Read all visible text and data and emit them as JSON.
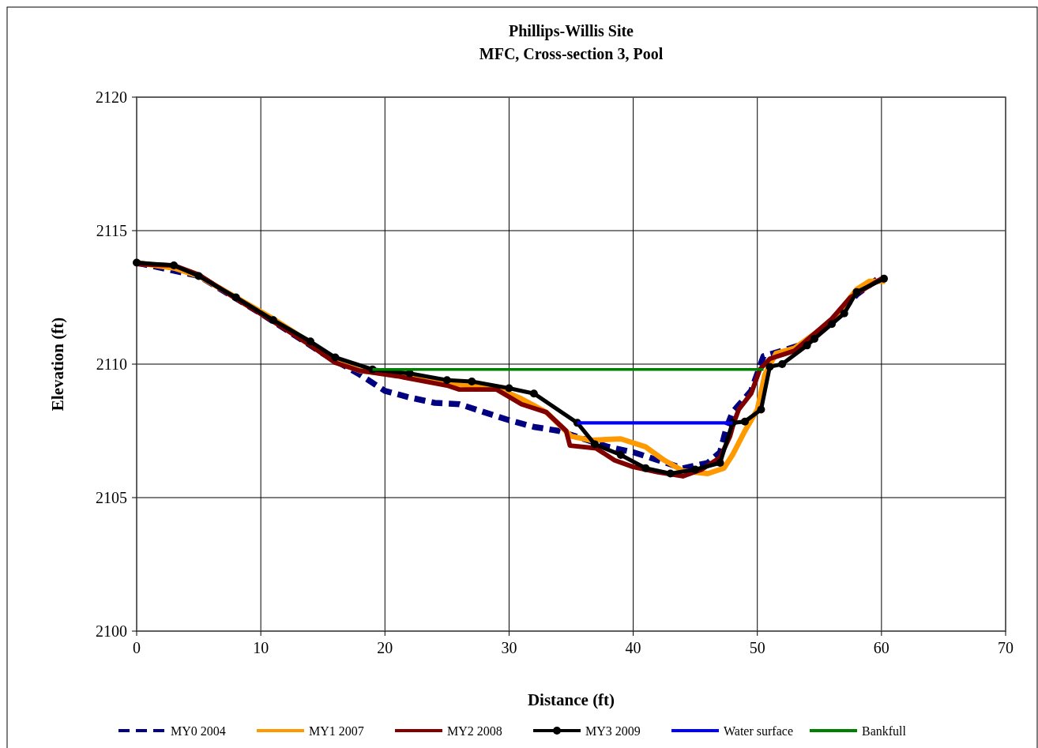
{
  "chart_data": {
    "type": "line",
    "title": "Phillips-Willis Site",
    "subtitle": "MFC, Cross-section 3, Pool",
    "xlabel": "Distance (ft)",
    "ylabel": "Elevation (ft)",
    "xlim": [
      0,
      70
    ],
    "xticks": [
      0,
      10,
      20,
      30,
      40,
      50,
      60,
      70
    ],
    "ylim": [
      2100,
      2120
    ],
    "yticks": [
      2100,
      2105,
      2110,
      2115,
      2120
    ],
    "grid": true,
    "legend": "bottom",
    "series": [
      {
        "name": "MY0 2004",
        "color": "#000080",
        "line_style": "dashed",
        "marker": "none",
        "x": [
          0,
          5,
          10,
          15,
          18,
          20,
          22,
          24,
          26,
          28,
          30,
          32,
          34,
          36,
          38,
          40,
          42,
          44,
          46,
          47,
          47.5,
          48,
          49.5,
          50.5,
          52,
          54,
          56,
          58,
          60
        ],
        "values": [
          2113.8,
          2113.3,
          2111.9,
          2110.4,
          2109.6,
          2109.0,
          2108.75,
          2108.55,
          2108.5,
          2108.2,
          2107.9,
          2107.65,
          2107.5,
          2107.2,
          2106.9,
          2106.7,
          2106.4,
          2106.1,
          2106.3,
          2106.7,
          2107.6,
          2108.2,
          2109.0,
          2110.3,
          2110.5,
          2110.8,
          2111.6,
          2112.6,
          2113.3
        ]
      },
      {
        "name": "MY1 2007",
        "color": "#ff9900",
        "line_style": "solid",
        "marker": "none",
        "x": [
          0,
          3,
          5,
          8,
          11,
          14,
          16,
          18,
          21,
          25,
          29,
          31,
          33,
          35,
          36.5,
          39,
          41,
          42.5,
          44,
          46,
          47.3,
          48,
          49,
          50,
          50.6,
          51.5,
          53,
          56,
          58,
          59,
          60.3
        ],
        "values": [
          2113.8,
          2113.6,
          2113.3,
          2112.5,
          2111.7,
          2110.8,
          2110.1,
          2109.75,
          2109.6,
          2109.3,
          2109.1,
          2108.7,
          2108.2,
          2107.3,
          2107.15,
          2107.2,
          2106.9,
          2106.4,
          2106.0,
          2105.9,
          2106.1,
          2106.6,
          2107.5,
          2108.3,
          2109.6,
          2110.4,
          2110.6,
          2111.6,
          2112.8,
          2113.1,
          2113.1
        ]
      },
      {
        "name": "MY2 2008",
        "color": "#800000",
        "line_style": "solid",
        "marker": "none",
        "x": [
          0,
          3,
          5,
          8,
          11,
          14,
          16,
          18,
          21,
          25,
          26,
          29,
          31,
          33,
          34.6,
          34.9,
          37,
          38.5,
          40,
          42,
          44,
          45.5,
          47,
          47.8,
          48.1,
          48.5,
          49.5,
          50.2,
          51,
          53,
          54,
          56,
          57.5,
          60
        ],
        "values": [
          2113.75,
          2113.7,
          2113.35,
          2112.45,
          2111.6,
          2110.7,
          2110.05,
          2109.75,
          2109.55,
          2109.2,
          2109.05,
          2109.05,
          2108.5,
          2108.2,
          2107.5,
          2106.95,
          2106.85,
          2106.4,
          2106.15,
          2105.95,
          2105.8,
          2106.05,
          2106.5,
          2107.3,
          2107.8,
          2108.3,
          2108.9,
          2109.8,
          2110.2,
          2110.5,
          2110.9,
          2111.7,
          2112.5,
          2113.2
        ]
      },
      {
        "name": "MY3 2009",
        "color": "#000000",
        "line_style": "solid",
        "marker": "circle",
        "x": [
          0,
          3,
          5,
          8,
          11,
          14,
          16,
          19,
          22,
          25,
          27,
          30,
          32,
          35.5,
          36.9,
          39,
          41,
          43,
          45,
          47,
          48,
          49,
          50.3,
          51,
          52,
          54,
          54.6,
          56,
          57,
          58,
          60.2
        ],
        "values": [
          2113.8,
          2113.7,
          2113.3,
          2112.5,
          2111.65,
          2110.85,
          2110.25,
          2109.8,
          2109.65,
          2109.4,
          2109.35,
          2109.1,
          2108.9,
          2107.8,
          2107.0,
          2106.6,
          2106.1,
          2105.9,
          2106.05,
          2106.3,
          2107.8,
          2107.85,
          2108.3,
          2109.9,
          2110.0,
          2110.7,
          2110.95,
          2111.5,
          2111.9,
          2112.7,
          2113.2
        ]
      },
      {
        "name": "Water surface",
        "color": "#0000ff",
        "line_style": "solid",
        "marker": "none",
        "x": [
          35.5,
          48
        ],
        "values": [
          2107.8,
          2107.8
        ]
      },
      {
        "name": "Bankfull",
        "color": "#008000",
        "line_style": "solid",
        "marker": "none",
        "x": [
          19,
          50.5
        ],
        "values": [
          2109.8,
          2109.8
        ]
      }
    ]
  }
}
